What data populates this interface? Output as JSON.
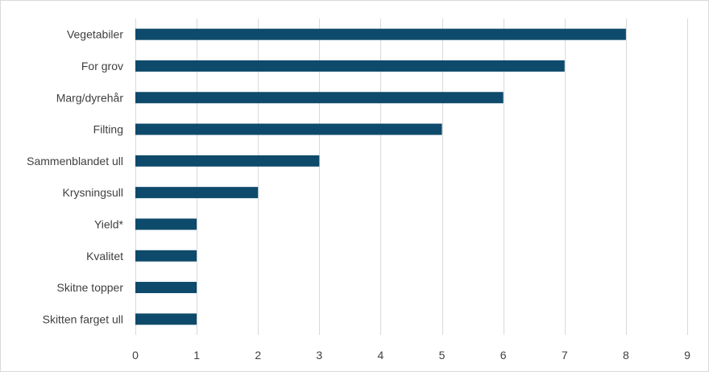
{
  "chart_data": {
    "type": "bar",
    "orientation": "horizontal",
    "categories": [
      "Vegetabiler",
      "For grov",
      "Marg/dyrehår",
      "Filting",
      "Sammenblandet ull",
      "Krysningsull",
      "Yield*",
      "Kvalitet",
      "Skitne topper",
      "Skitten farget ull"
    ],
    "values": [
      8,
      7,
      6,
      5,
      3,
      2,
      1,
      1,
      1,
      1
    ],
    "xlim": [
      0,
      9
    ],
    "ticks": [
      "0",
      "1",
      "2",
      "3",
      "4",
      "5",
      "6",
      "7",
      "8",
      "9"
    ],
    "grid": "vertical",
    "legend": "none",
    "bar_color": "#0e4a6b",
    "grid_color": "#d9d9d9",
    "title": "",
    "xlabel": "",
    "ylabel": ""
  }
}
